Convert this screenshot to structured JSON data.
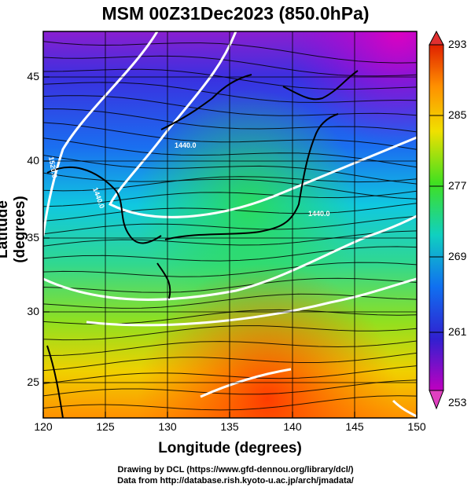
{
  "title": "MSM 00Z31Dec2023 (850.0hPa)",
  "xlabel": "Longitude (degrees)",
  "ylabel": "Latitude  (degrees)",
  "x_ticks": [
    "120",
    "125",
    "130",
    "135",
    "140",
    "145",
    "150"
  ],
  "y_ticks": [
    "25",
    "30",
    "35",
    "40",
    "45"
  ],
  "colorbar": {
    "ticks": [
      "293",
      "285",
      "277",
      "269",
      "261",
      "253"
    ],
    "min": 253,
    "max": 293,
    "units_hint": "temperature (K)"
  },
  "contour_labels": [
    "1440.0",
    "1440.0",
    "1440.0",
    "1520.0"
  ],
  "credits": {
    "line1": "Drawing by DCL (https://www.gfd-dennou.org/library/dcl/)",
    "line2": "Data from http://database.rish.kyoto-u.ac.jp/arch/jmadata/"
  },
  "chart_data": {
    "type": "heatmap",
    "title": "MSM 00Z31Dec2023 (850.0hPa)",
    "xlabel": "Longitude (degrees)",
    "ylabel": "Latitude  (degrees)",
    "xlim": [
      120,
      150
    ],
    "ylim": [
      22.4,
      47.6
    ],
    "color_range": [
      253,
      293
    ],
    "overlays": [
      "temperature shading",
      "streamlines",
      "geopotential height contours (white)",
      "coastlines"
    ],
    "colors": {
      "cold": "#c000c0",
      "mid": "#00c8c8",
      "warm": "#ff3000",
      "contour": "#ffffff"
    }
  }
}
